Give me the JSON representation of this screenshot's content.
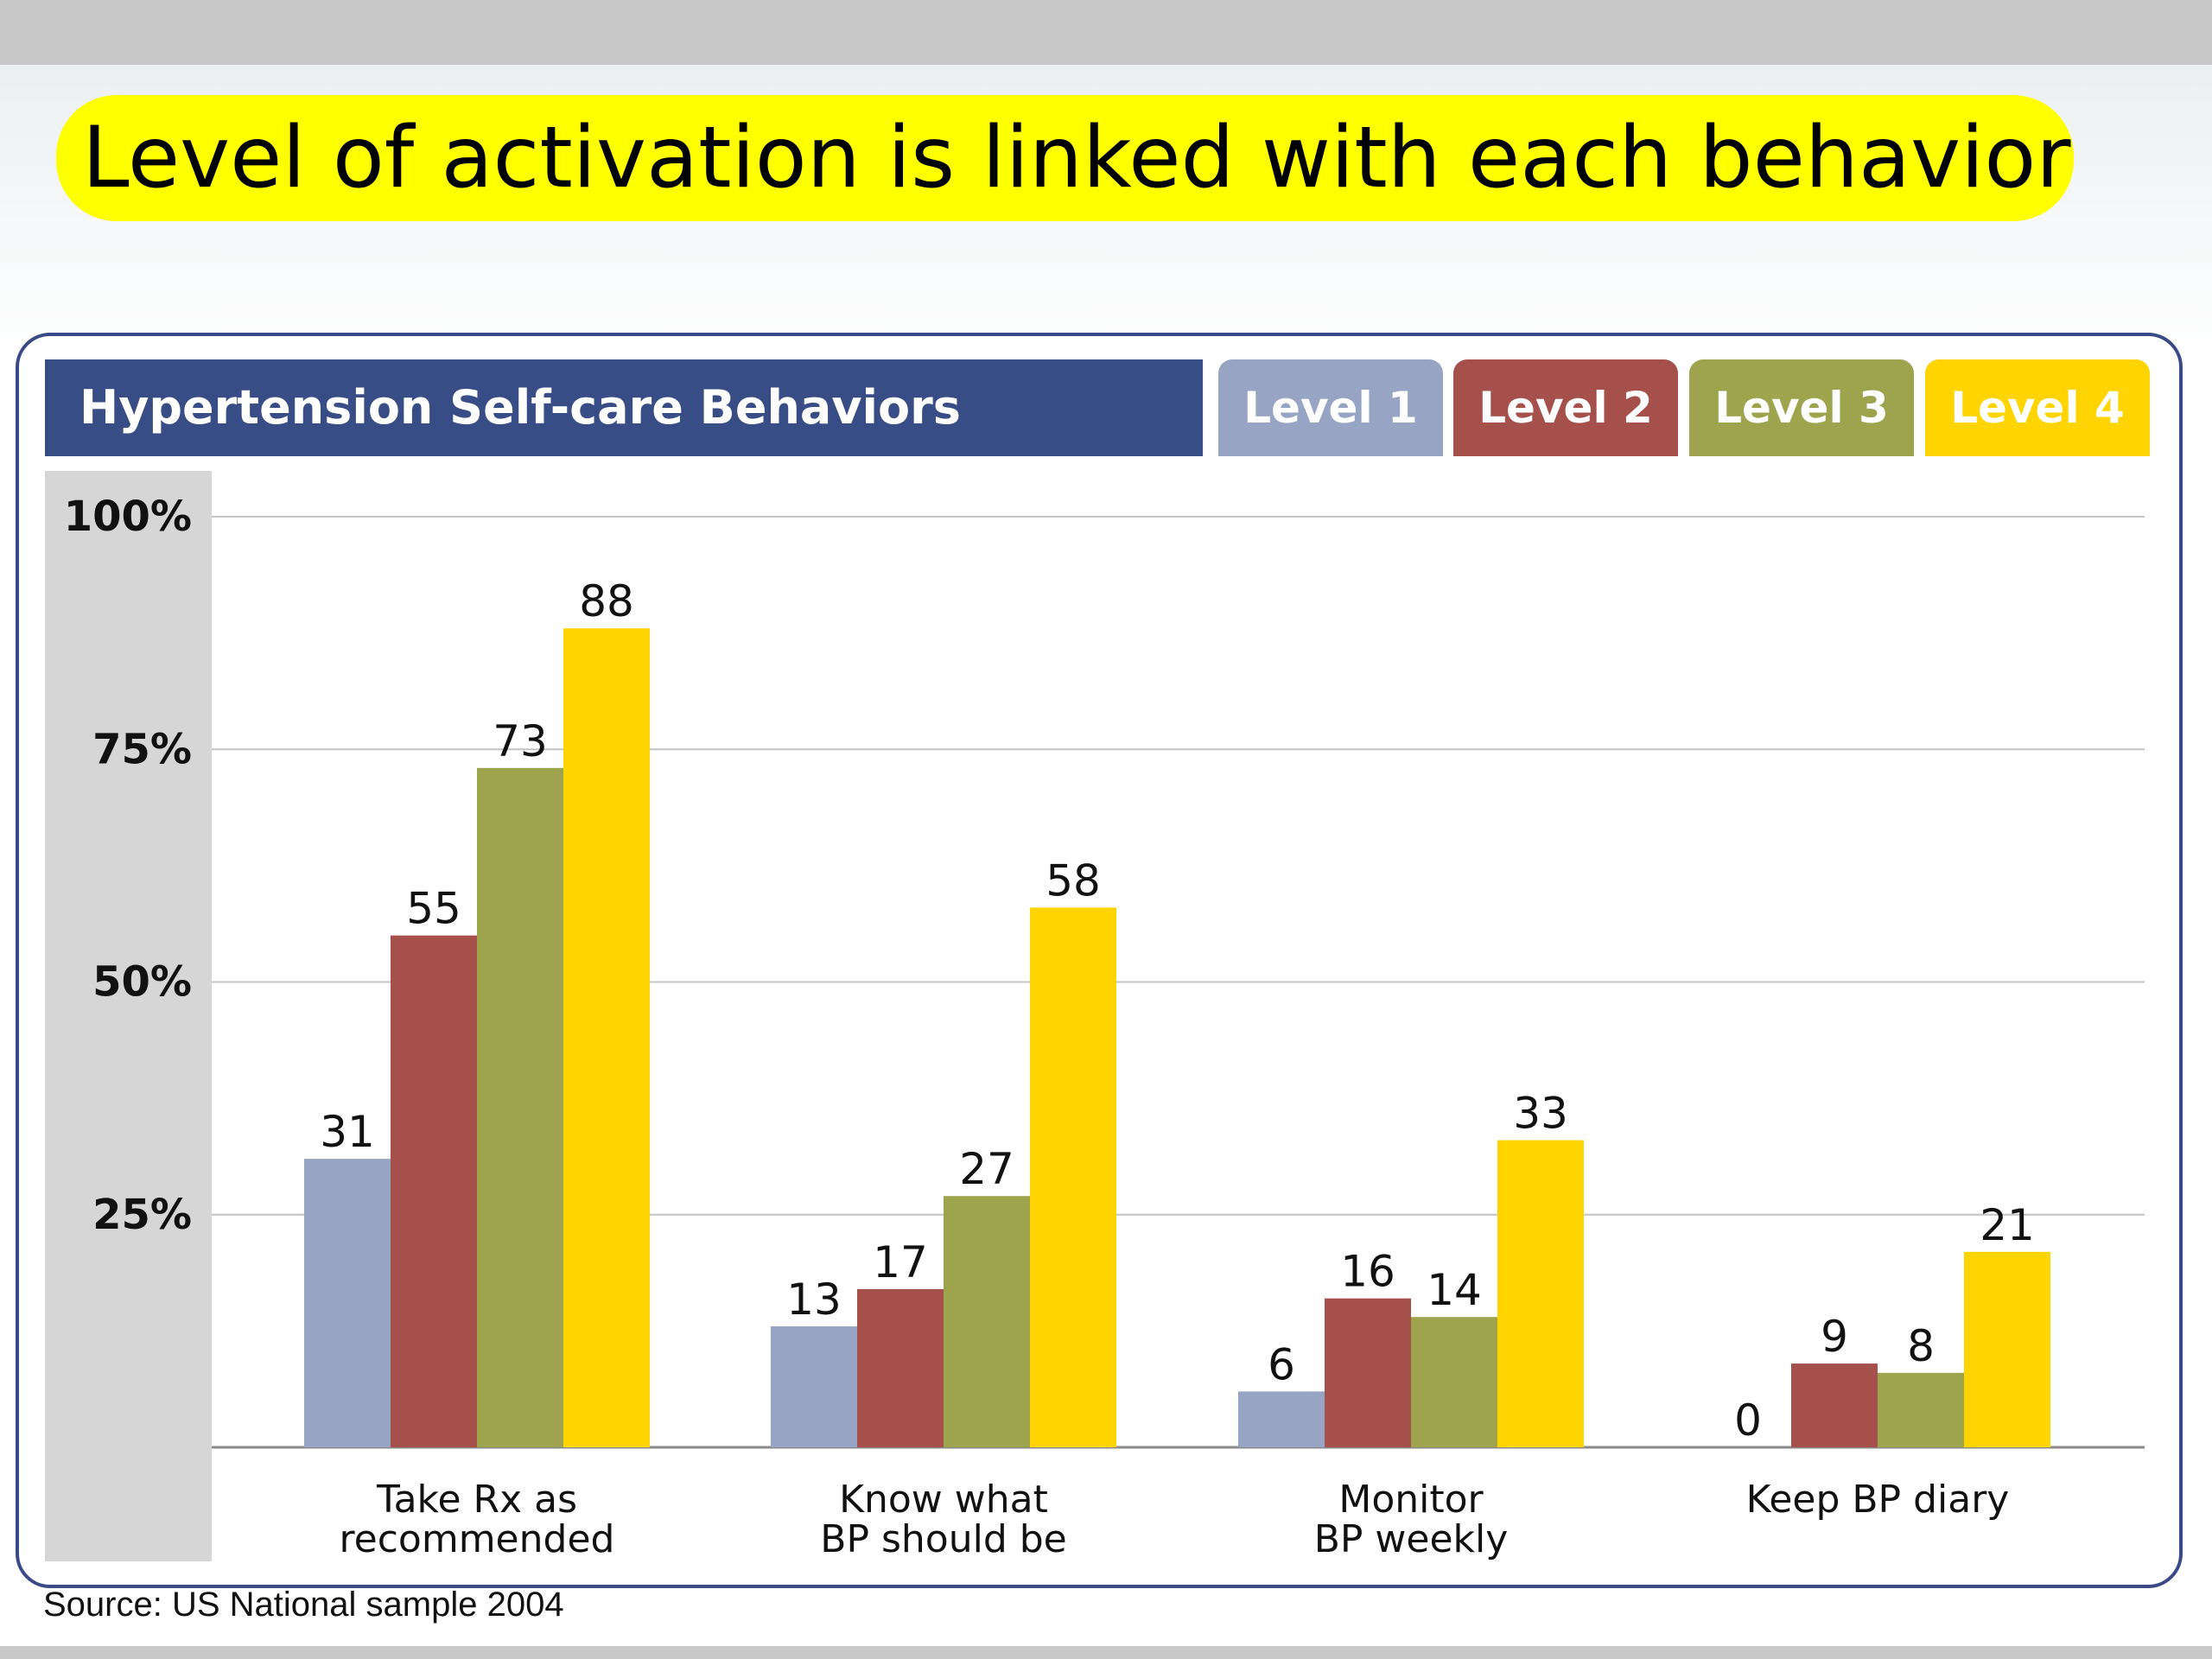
{
  "slide": {
    "title": "Level of activation is linked with each behavior",
    "source": "Source: US National sample 2004"
  },
  "chart_data": {
    "type": "bar",
    "title": "Hypertension Self-care Behaviors",
    "categories": [
      [
        "Take Rx as",
        "recommended"
      ],
      [
        "Know what",
        "BP should be"
      ],
      [
        "Monitor",
        "BP weekly"
      ],
      [
        "Keep BP diary"
      ]
    ],
    "series": [
      {
        "name": "Level 1",
        "color": "#98a4c4",
        "values": [
          31,
          13,
          6,
          0
        ],
        "labels": [
          "31",
          "13",
          "6",
          "0"
        ]
      },
      {
        "name": "Level 2",
        "color": "#a5504a",
        "values": [
          55,
          17,
          16,
          9
        ],
        "labels": [
          "55",
          "17",
          "16",
          "9"
        ]
      },
      {
        "name": "Level 3",
        "color": "#9ea44e",
        "values": [
          73,
          27,
          14,
          8
        ],
        "labels": [
          "73",
          "27",
          "14",
          "8"
        ]
      },
      {
        "name": "Level 4",
        "color": "#ffd400",
        "values": [
          88,
          58,
          33,
          21
        ],
        "labels": [
          "88",
          "58",
          "33",
          "21"
        ]
      }
    ],
    "yticks": [
      "100%",
      "75%",
      "50%",
      "25%"
    ],
    "ytick_values": [
      100,
      75,
      50,
      25
    ],
    "ylim": [
      0,
      100
    ],
    "grid": true,
    "legend_position": "top-right"
  }
}
